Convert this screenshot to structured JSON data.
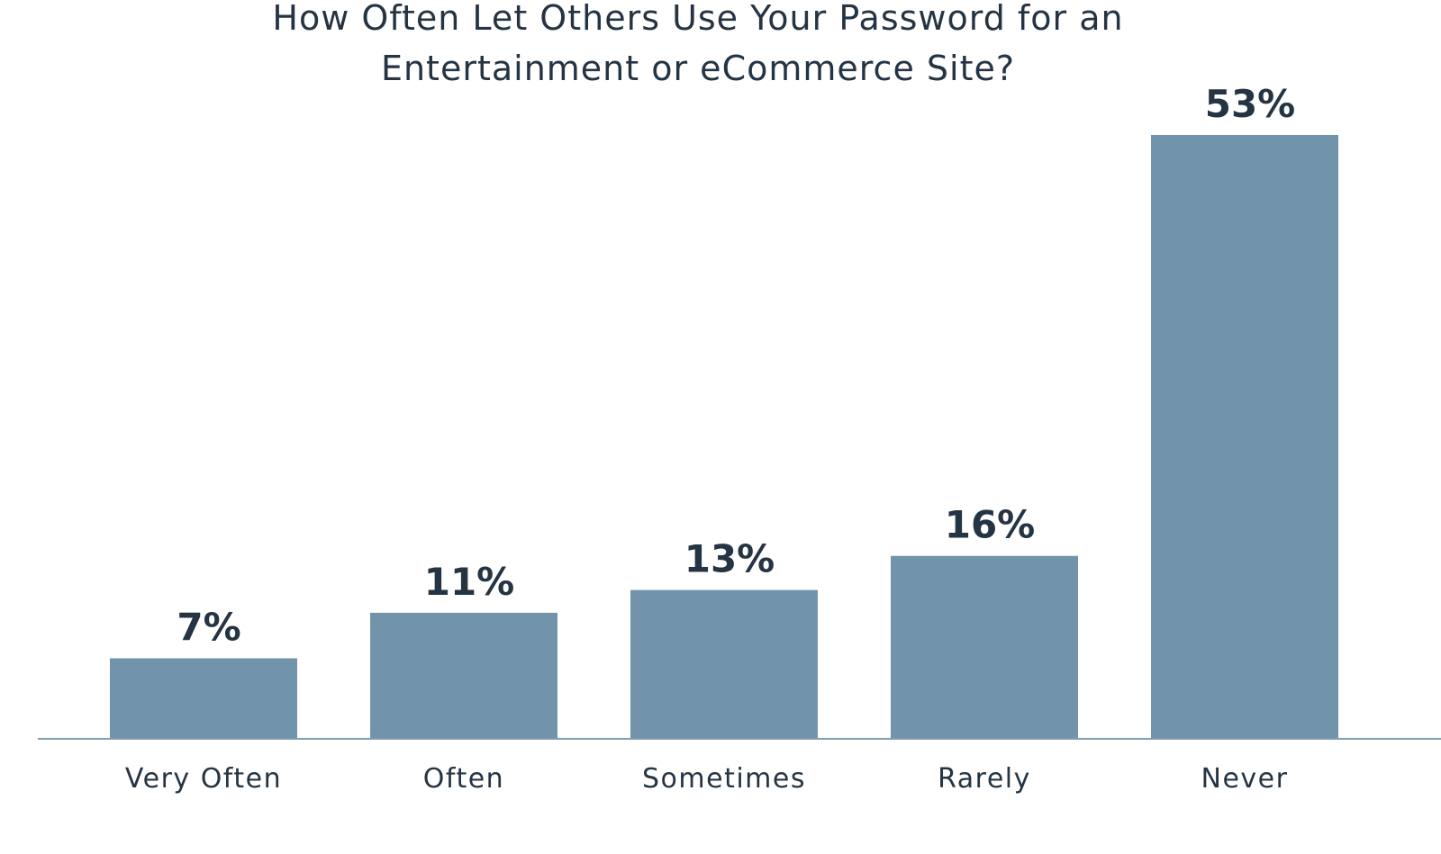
{
  "chart_data": {
    "type": "bar",
    "title_lines": [
      "How Often Let Others Use Your Password for an",
      "Entertainment or eCommerce Site?"
    ],
    "categories": [
      "Very Often",
      "Often",
      "Sometimes",
      "Rarely",
      "Never"
    ],
    "values": [
      7,
      11,
      13,
      16,
      53
    ],
    "value_labels": [
      "7%",
      "11%",
      "13%",
      "16%",
      "53%"
    ],
    "ylim": [
      0,
      53
    ],
    "grid": false,
    "legend": "none",
    "colors": {
      "bar": "#7294AA",
      "axis": "#7F9DB3",
      "text": "#253443"
    }
  }
}
